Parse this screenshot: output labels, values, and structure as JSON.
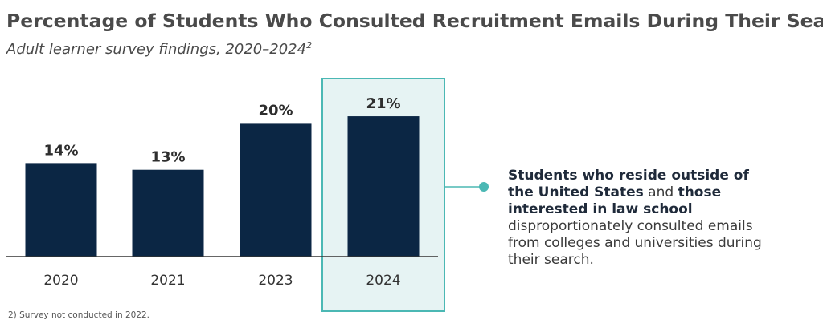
{
  "title": "Percentage of Students Who Consulted Recruitment Emails During Their Search",
  "subtitle": "Adult learner survey findings, 2020–2024",
  "subtitle_sup": "2",
  "callout": {
    "bold1": "Students who reside outside of the United States",
    "plain1": " and ",
    "bold2": "those interested in law school",
    "plain2": " disproportionately consulted emails from colleges and universities during their search."
  },
  "footnote": "2) Survey not conducted in 2022.",
  "chart_data": {
    "type": "bar",
    "categories": [
      "2020",
      "2021",
      "2023",
      "2024"
    ],
    "values": [
      14,
      13,
      20,
      21
    ],
    "value_labels": [
      "14%",
      "13%",
      "20%",
      "21%"
    ],
    "highlighted_category": "2024",
    "ylim": [
      0,
      21
    ]
  },
  "colors": {
    "bar": "#0b2644",
    "highlight_fill": "#e6f3f3",
    "highlight_border": "#4bb8b4",
    "axis": "#333333"
  }
}
